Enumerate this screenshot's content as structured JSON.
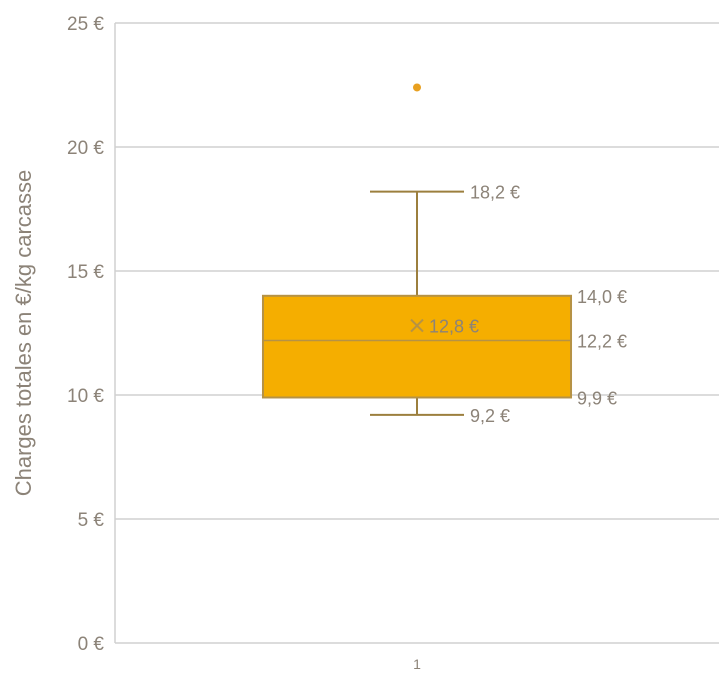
{
  "chart_data": {
    "type": "boxplot",
    "title": "",
    "xlabel": "",
    "ylabel": "Charges totales en €/kg carcasse",
    "ylim": [
      0,
      25
    ],
    "yticks": [
      {
        "value": 0,
        "label": "0 €"
      },
      {
        "value": 5,
        "label": "5 €"
      },
      {
        "value": 10,
        "label": "10 €"
      },
      {
        "value": 15,
        "label": "15 €"
      },
      {
        "value": 20,
        "label": "20 €"
      },
      {
        "value": 25,
        "label": "25 €"
      }
    ],
    "grid": true,
    "legend": "none",
    "categories": [
      "1"
    ],
    "series": [
      {
        "category": "1",
        "min": 9.2,
        "q1": 9.9,
        "median": 12.2,
        "mean": 12.8,
        "q3": 14.0,
        "max": 18.2,
        "outliers": [
          22.4
        ],
        "labels": {
          "min": "9,2 €",
          "q1": "9,9 €",
          "median": "12,2 €",
          "mean": "12,8 €",
          "q3": "14,0 €",
          "max": "18,2 €"
        }
      }
    ],
    "colors": {
      "box_fill": "#f5ae00",
      "box_stroke": "#b59246",
      "whisker": "#9c7f3e",
      "outlier": "#e8a020",
      "grid": "#d0d0d0",
      "text": "#8c8378"
    }
  }
}
